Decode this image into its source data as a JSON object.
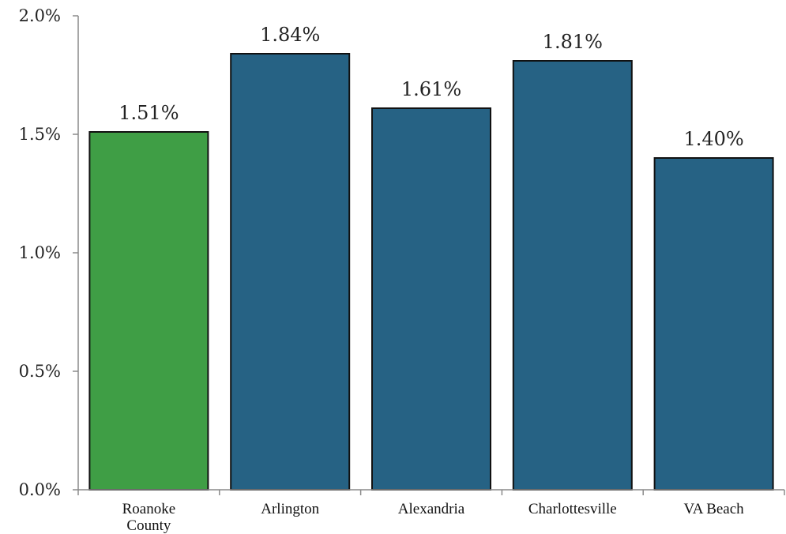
{
  "chart_data": {
    "type": "bar",
    "categories": [
      [
        "Roanoke",
        "County"
      ],
      [
        "Arlington"
      ],
      [
        "Alexandria"
      ],
      [
        "Charlottesville"
      ],
      [
        "VA Beach"
      ]
    ],
    "values": [
      1.51,
      1.84,
      1.61,
      1.81,
      1.4
    ],
    "data_labels": [
      "1.51%",
      "1.84%",
      "1.61%",
      "1.81%",
      "1.40%"
    ],
    "bar_colors": [
      "#3f9e45",
      "#266284",
      "#266284",
      "#266284",
      "#266284"
    ],
    "bar_stroke": "#111111",
    "axis_color": "#8a8a8a",
    "ylim": [
      0,
      2.0
    ],
    "y_ticks": [
      0.0,
      0.5,
      1.0,
      1.5,
      2.0
    ],
    "y_tick_labels": [
      "0.0%",
      "0.5%",
      "1.0%",
      "1.5%",
      "2.0%"
    ],
    "title": "",
    "xlabel": "",
    "ylabel": "",
    "grid": false,
    "legend": "none"
  }
}
